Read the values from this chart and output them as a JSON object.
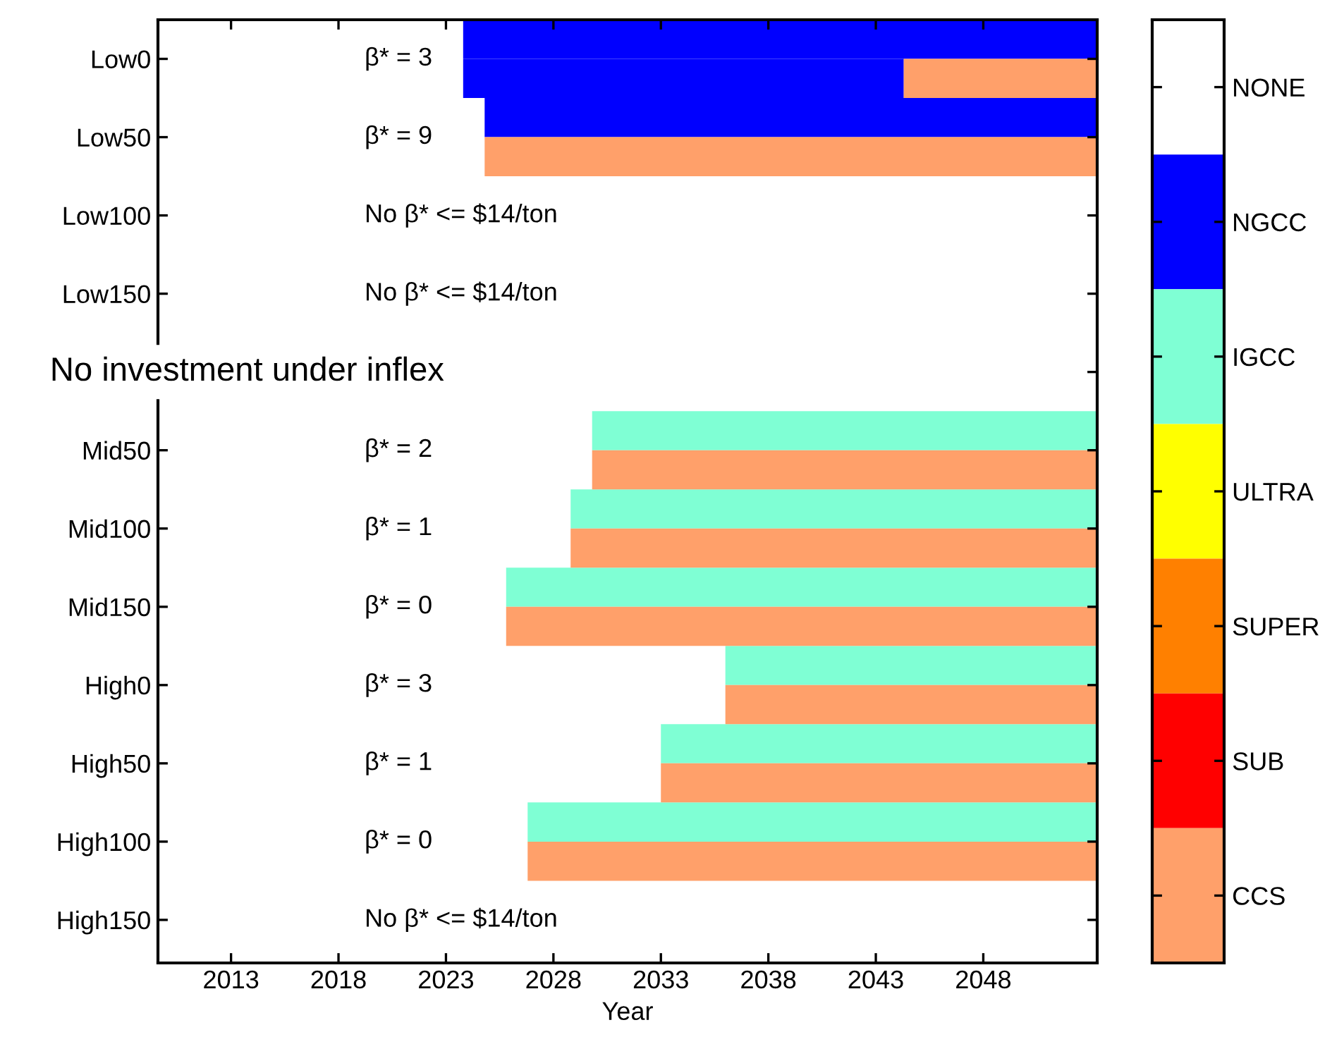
{
  "chart_data": [
    {
      "type": "bar",
      "orientation": "horizontal",
      "xlabel": "Year",
      "categories": [
        "Low0",
        "Low50",
        "Low100",
        "Low150",
        null,
        "Mid50",
        "Mid100",
        "Mid150",
        "High0",
        "High50",
        "High100",
        "High150"
      ],
      "xlim": [
        2009.6,
        2053.3
      ],
      "xticks": [
        2013,
        2018,
        2023,
        2028,
        2033,
        2038,
        2043,
        2048
      ],
      "series": [
        {
          "colors": [
            "#0000ff",
            "#0000ff",
            null,
            null,
            null,
            "#7fffd4",
            "#7fffd4",
            "#7fffd4",
            "#7fffd4",
            "#7fffd4",
            "#7fffd4",
            null
          ],
          "base": [
            2023.8,
            2024.8,
            null,
            null,
            null,
            2029.8,
            2028.8,
            2025.8,
            2036.0,
            2033.0,
            2026.8,
            null
          ],
          "values": [
            29.5,
            28.5,
            null,
            null,
            null,
            23.5,
            24.5,
            27.5,
            17.3,
            20.3,
            26.5,
            null
          ]
        },
        {
          "colors": [
            "#0000ff",
            "#ffa06a",
            null,
            null,
            null,
            "#ffa06a",
            "#ffa06a",
            "#ffa06a",
            "#ffa06a",
            "#ffa06a",
            "#ffa06a",
            null
          ],
          "base": [
            2023.8,
            2024.8,
            null,
            null,
            null,
            2029.8,
            2028.8,
            2025.8,
            2036.0,
            2033.0,
            2026.8,
            null
          ],
          "values": [
            20.5,
            28.5,
            null,
            null,
            null,
            23.5,
            24.5,
            27.5,
            17.3,
            20.3,
            26.5,
            null
          ]
        },
        {
          "color": "#ffa06a",
          "base": [
            2044.3,
            null,
            null,
            null,
            null,
            null,
            null,
            null,
            null,
            null,
            null,
            null
          ],
          "values": [
            9.0,
            null,
            null,
            null,
            null,
            null,
            null,
            null,
            null,
            null,
            null,
            null
          ]
        }
      ],
      "annotations": [
        "β* = 3",
        "β* = 9",
        "No β* <= $14/ton",
        "No β* <= $14/ton",
        "No investment under inflex",
        "β* = 2",
        "β* = 1",
        "β* = 0",
        "β* = 3",
        "β* = 1",
        "β* = 0",
        "No β* <= $14/ton"
      ]
    },
    {
      "type": "other",
      "categories": [
        "NONE",
        "NGCC",
        "IGCC",
        "ULTRA",
        "SUPER",
        "SUB",
        "CCS"
      ],
      "colors": [
        "#ffffff",
        "#0000ff",
        "#7fffd4",
        "#ffff00",
        "#ff8000",
        "#ff0000",
        "#ffa06a"
      ]
    }
  ]
}
